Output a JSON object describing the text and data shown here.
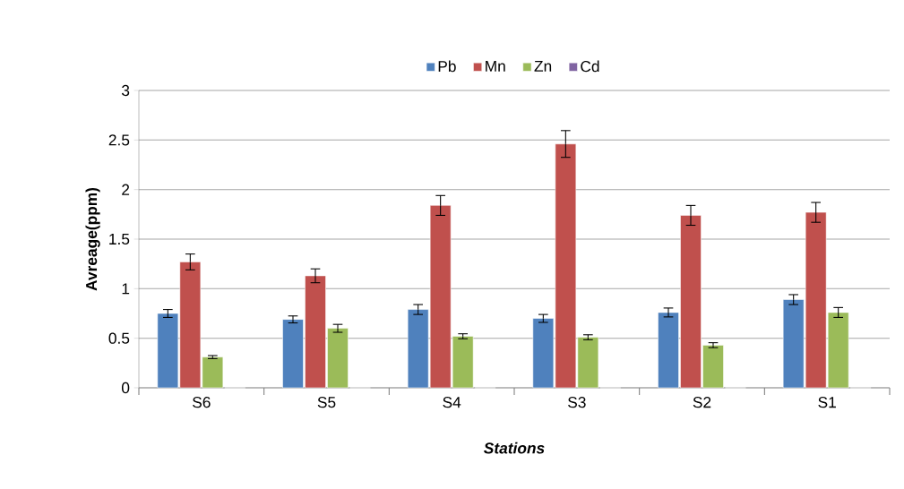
{
  "chart_data": {
    "type": "bar",
    "xlabel": "Stations",
    "ylabel": "Avreage(ppm)",
    "categories": [
      "S6",
      "S5",
      "S4",
      "S3",
      "S2",
      "S1"
    ],
    "series": [
      {
        "name": "Pb",
        "color": "#4f81bd",
        "values": [
          0.75,
          0.69,
          0.79,
          0.7,
          0.76,
          0.89
        ],
        "errors": [
          0.04,
          0.035,
          0.05,
          0.04,
          0.045,
          0.05
        ]
      },
      {
        "name": "Mn",
        "color": "#c0504d",
        "values": [
          1.27,
          1.13,
          1.84,
          2.46,
          1.74,
          1.77
        ],
        "errors": [
          0.08,
          0.07,
          0.1,
          0.135,
          0.1,
          0.1
        ]
      },
      {
        "name": "Zn",
        "color": "#9bbb59",
        "values": [
          0.31,
          0.6,
          0.52,
          0.51,
          0.43,
          0.76
        ],
        "errors": [
          0.015,
          0.04,
          0.025,
          0.025,
          0.025,
          0.05
        ]
      },
      {
        "name": "Cd",
        "color": "#8064a2",
        "values": [
          0,
          0,
          0,
          0,
          0,
          0
        ]
      }
    ],
    "ylim": [
      0,
      3
    ],
    "yticks": [
      0,
      0.5,
      1,
      1.5,
      2,
      2.5,
      3
    ],
    "grid": "y",
    "legend": "top"
  }
}
